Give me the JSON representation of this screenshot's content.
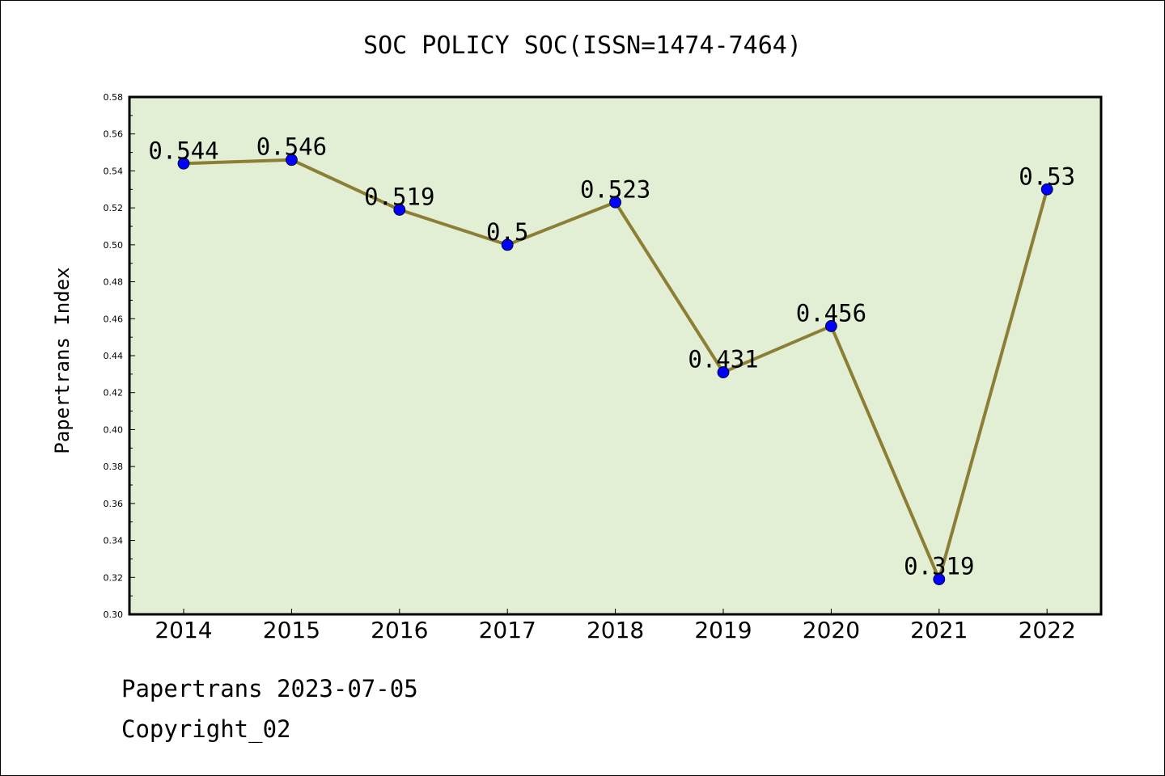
{
  "chart_data": {
    "type": "line",
    "title": "SOC POLICY SOC(ISSN=1474-7464)",
    "xlabel": "",
    "ylabel": "Papertrans Index",
    "x": [
      "2014",
      "2015",
      "2016",
      "2017",
      "2018",
      "2019",
      "2020",
      "2021",
      "2022"
    ],
    "series": [
      {
        "values": [
          0.544,
          0.546,
          0.519,
          0.5,
          0.523,
          0.431,
          0.456,
          0.319,
          0.53
        ],
        "labels": [
          "0.544",
          "0.546",
          "0.519",
          "0.5",
          "0.523",
          "0.431",
          "0.456",
          "0.319",
          "0.53"
        ]
      }
    ],
    "ylim": [
      0.3,
      0.58
    ],
    "yticks": [
      "0.30",
      "0.32",
      "0.34",
      "0.36",
      "0.38",
      "0.40",
      "0.42",
      "0.44",
      "0.46",
      "0.48",
      "0.50",
      "0.52",
      "0.54",
      "0.56",
      "0.58"
    ],
    "grid": false,
    "colors": {
      "plot_background": "#e2efd4",
      "line": "#8c7f35",
      "marker": "#0000ff"
    }
  },
  "footer": {
    "line1": "Papertrans 2023-07-05",
    "line2": "Copyright_02"
  }
}
